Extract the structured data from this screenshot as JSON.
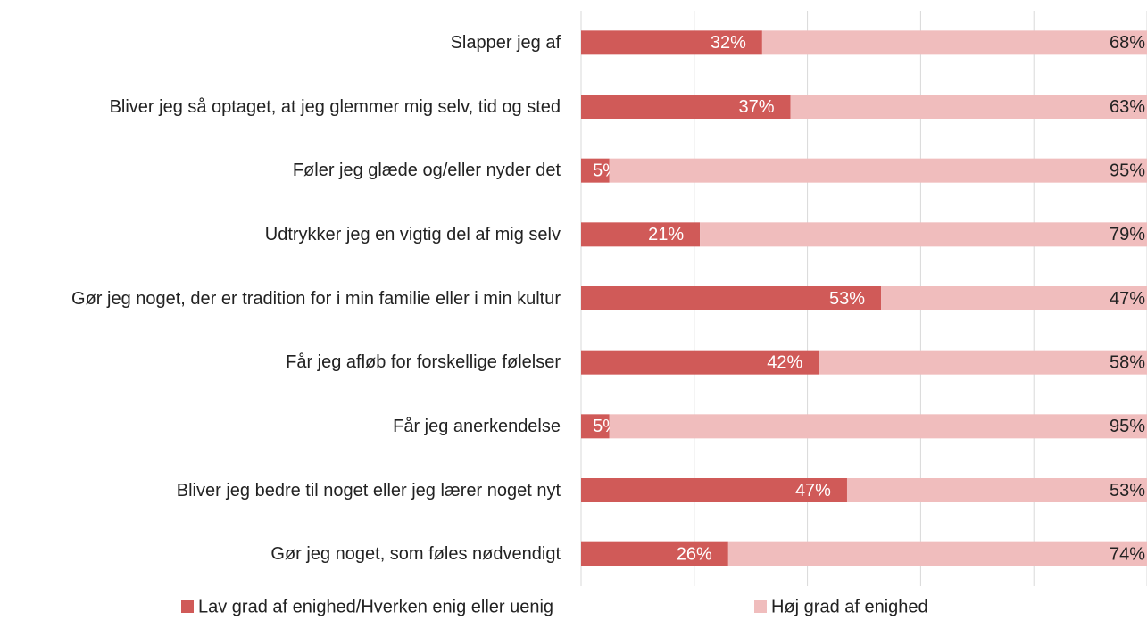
{
  "chart_data": {
    "type": "stacked_barh",
    "categories": [
      "Slapper jeg af",
      "Bliver jeg så optaget, at jeg glemmer mig selv, tid og sted",
      "Føler jeg glæde og/eller nyder det",
      "Udtrykker jeg en vigtig del af mig selv",
      "Gør jeg noget, der er tradition for i min familie eller i min kultur",
      "Får jeg afløb for forskellige følelser",
      "Får jeg anerkendelse",
      "Bliver jeg bedre til noget eller jeg lærer noget nyt",
      "Gør jeg noget, som føles nødvendigt"
    ],
    "series": [
      {
        "name": "Lav grad af enighed/Hverken enig eller uenig",
        "color": "#d05a58",
        "values": [
          32,
          37,
          5,
          21,
          53,
          42,
          5,
          47,
          26
        ],
        "value_labels": [
          "32%",
          "37%",
          "5%",
          "21%",
          "53%",
          "42%",
          "5%",
          "47%",
          "26%"
        ]
      },
      {
        "name": "Høj grad af enighed",
        "color": "#f0bdbd",
        "values": [
          68,
          63,
          95,
          79,
          47,
          58,
          95,
          53,
          74
        ],
        "value_labels": [
          "68%",
          "63%",
          "95%",
          "79%",
          "47%",
          "58%",
          "95%",
          "53%",
          "74%"
        ]
      }
    ],
    "xlim": [
      0,
      100
    ],
    "xticks": [
      0,
      20,
      40,
      60,
      80,
      100
    ],
    "grid": true,
    "legend": "bottom"
  }
}
